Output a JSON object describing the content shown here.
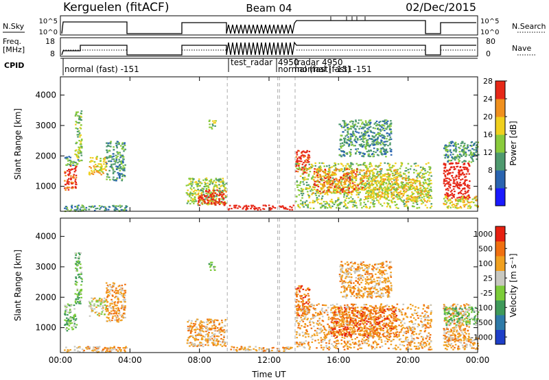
{
  "header": {
    "station": "Kerguelen (fitACF)",
    "beam": "Beam 04",
    "date": "02/Dec/2015"
  },
  "top_panels": {
    "nsky_label": "N.Sky",
    "nsky_ticks": [
      "10^5",
      "10^0"
    ],
    "nsearch_label": "N.Search",
    "nsearch_ticks": [
      "10^5",
      "10^0"
    ],
    "freq_label_1": "Freq.",
    "freq_label_2": "[MHz]",
    "freq_ticks": [
      "18",
      "8"
    ],
    "nave_label": "Nave",
    "nave_ticks": [
      "80",
      "0"
    ],
    "cpid_label": "CPID",
    "cpid_segments": [
      {
        "text": "normal (fast) -151"
      },
      {
        "text": "test_radar"
      },
      {
        "text": "4950"
      },
      {
        "text": "radar 4950"
      },
      {
        "text": "normal (fast) -151"
      },
      {
        "text": "normal (fast) -151"
      }
    ]
  },
  "chart_data": [
    {
      "type": "heatmap",
      "title": "",
      "xlabel": "Time UT",
      "ylabel": "Slant Range [km]",
      "xlim": [
        0,
        24
      ],
      "ylim": [
        180,
        4600
      ],
      "x_ticks": [
        "00:00",
        "04:00",
        "08:00",
        "12:00",
        "16:00",
        "20:00",
        "00:00"
      ],
      "y_ticks": [
        "1000",
        "2000",
        "3000",
        "4000"
      ],
      "colorbar": {
        "label": "Power [dB]",
        "ticks": [
          "4",
          "8",
          "12",
          "16",
          "20",
          "24",
          "28"
        ],
        "colors": [
          "#1a1aff",
          "#2a64b0",
          "#4f9a6f",
          "#8acb3c",
          "#f0d01e",
          "#f0901e",
          "#e62818"
        ]
      },
      "gap_lines_hours": [
        9.6,
        12.5,
        12.6,
        13.5
      ],
      "regions": [
        {
          "t0": 0.2,
          "t1": 0.9,
          "r0": 900,
          "r1": 1700,
          "level": 6
        },
        {
          "t0": 0.2,
          "t1": 1.0,
          "r0": 1700,
          "r1": 2000,
          "level": 2
        },
        {
          "t0": 0.8,
          "t1": 1.2,
          "r0": 1800,
          "r1": 3500,
          "level": 3
        },
        {
          "t0": 1.6,
          "t1": 2.6,
          "r0": 1400,
          "r1": 2000,
          "level": 4
        },
        {
          "t0": 2.6,
          "t1": 3.7,
          "r0": 1200,
          "r1": 2500,
          "level": 2
        },
        {
          "t0": 0.2,
          "t1": 3.8,
          "r0": 200,
          "r1": 400,
          "level": 2
        },
        {
          "t0": 7.2,
          "t1": 9.5,
          "r0": 400,
          "r1": 1300,
          "level": 3
        },
        {
          "t0": 7.8,
          "t1": 9.5,
          "r0": 400,
          "r1": 900,
          "level": 6
        },
        {
          "t0": 8.5,
          "t1": 8.9,
          "r0": 2900,
          "r1": 3200,
          "level": 3
        },
        {
          "t0": 9.6,
          "t1": 13.4,
          "r0": 250,
          "r1": 400,
          "level": 7
        },
        {
          "t0": 13.5,
          "t1": 14.3,
          "r0": 1400,
          "r1": 2200,
          "level": 6
        },
        {
          "t0": 13.5,
          "t1": 21.3,
          "r0": 300,
          "r1": 1800,
          "level": 3
        },
        {
          "t0": 14.5,
          "t1": 17.5,
          "r0": 800,
          "r1": 1600,
          "level": 5
        },
        {
          "t0": 16.0,
          "t1": 19.0,
          "r0": 2000,
          "r1": 3200,
          "level": 2
        },
        {
          "t0": 17.5,
          "t1": 19.5,
          "r0": 600,
          "r1": 1600,
          "level": 4
        },
        {
          "t0": 19.5,
          "t1": 21.2,
          "r0": 500,
          "r1": 1300,
          "level": 4
        },
        {
          "t0": 22.0,
          "t1": 23.5,
          "r0": 600,
          "r1": 1800,
          "level": 7
        },
        {
          "t0": 22.0,
          "t1": 24.0,
          "r0": 1800,
          "r1": 2500,
          "level": 2
        },
        {
          "t0": 22.0,
          "t1": 24.0,
          "r0": 300,
          "r1": 700,
          "level": 4
        }
      ]
    },
    {
      "type": "heatmap",
      "title": "",
      "xlabel": "Time UT",
      "ylabel": "Slant Range [km]",
      "xlim": [
        0,
        24
      ],
      "ylim": [
        180,
        4600
      ],
      "x_ticks": [
        "00:00",
        "04:00",
        "08:00",
        "12:00",
        "16:00",
        "20:00",
        "00:00"
      ],
      "y_ticks": [
        "1000",
        "2000",
        "3000",
        "4000"
      ],
      "colorbar": {
        "label": "Velocity [m s⁻¹]",
        "ticks": [
          "1000",
          "500",
          "100",
          "25",
          "-25",
          "-100",
          "-500",
          "-1000"
        ],
        "colors": [
          "#1e3fc8",
          "#2e7aa8",
          "#3f9a5a",
          "#7ccc3a",
          "#c8c8c0",
          "#f0a020",
          "#f07010",
          "#e62010"
        ]
      },
      "gap_lines_hours": [
        9.6,
        12.5,
        12.6,
        13.5
      ],
      "regions": [
        {
          "t0": 0.2,
          "t1": 0.9,
          "r0": 900,
          "r1": 1800,
          "level": 3
        },
        {
          "t0": 0.8,
          "t1": 1.2,
          "r0": 1800,
          "r1": 3500,
          "level": 3
        },
        {
          "t0": 1.6,
          "t1": 2.6,
          "r0": 1400,
          "r1": 2000,
          "level": 4
        },
        {
          "t0": 2.6,
          "t1": 3.7,
          "r0": 1200,
          "r1": 2500,
          "level": 5
        },
        {
          "t0": 0.2,
          "t1": 3.8,
          "r0": 200,
          "r1": 400,
          "level": 5
        },
        {
          "t0": 7.2,
          "t1": 9.5,
          "r0": 400,
          "r1": 1300,
          "level": 5
        },
        {
          "t0": 8.5,
          "t1": 8.9,
          "r0": 2900,
          "r1": 3200,
          "level": 3
        },
        {
          "t0": 9.6,
          "t1": 13.4,
          "r0": 250,
          "r1": 400,
          "level": 5
        },
        {
          "t0": 13.5,
          "t1": 14.3,
          "r0": 1400,
          "r1": 2400,
          "level": 6
        },
        {
          "t0": 13.5,
          "t1": 21.3,
          "r0": 300,
          "r1": 1800,
          "level": 5
        },
        {
          "t0": 15.5,
          "t1": 19.3,
          "r0": 700,
          "r1": 1700,
          "level": 6
        },
        {
          "t0": 16.0,
          "t1": 19.0,
          "r0": 2000,
          "r1": 3200,
          "level": 5
        },
        {
          "t0": 22.0,
          "t1": 23.5,
          "r0": 600,
          "r1": 1800,
          "level": 5
        },
        {
          "t0": 22.0,
          "t1": 24.0,
          "r0": 1100,
          "r1": 1700,
          "level": 3
        },
        {
          "t0": 22.0,
          "t1": 24.0,
          "r0": 300,
          "r1": 700,
          "level": 5
        }
      ]
    }
  ]
}
